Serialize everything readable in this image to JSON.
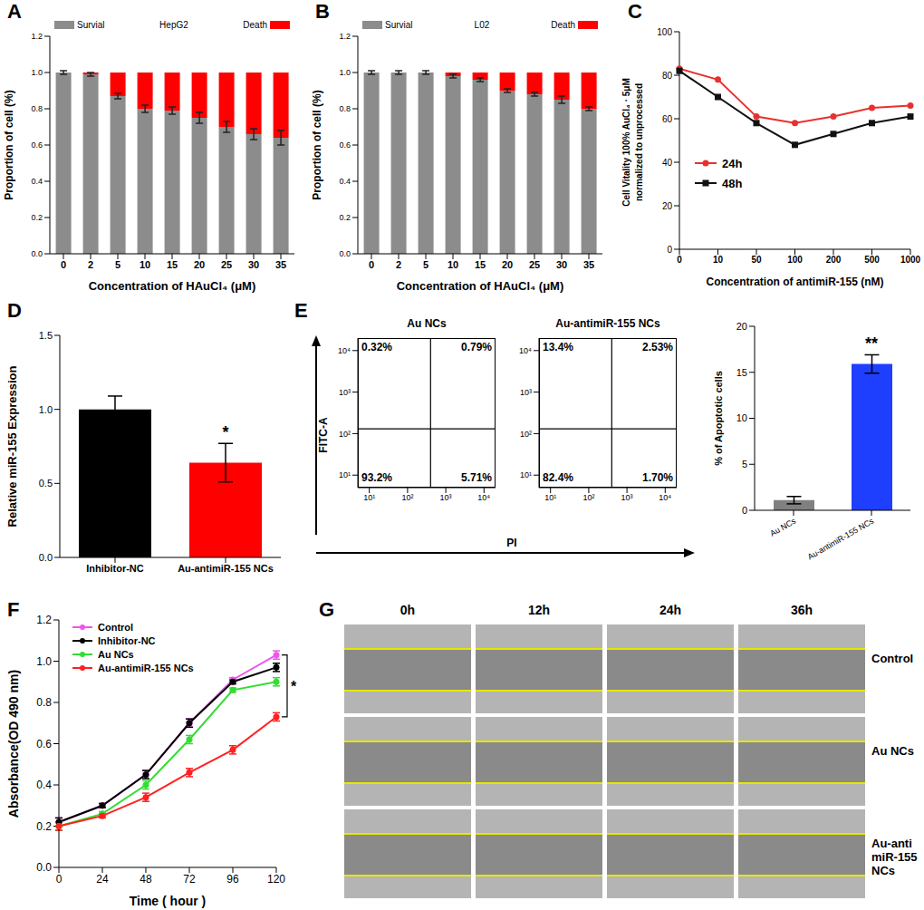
{
  "chart_data": [
    {
      "panel": "A",
      "type": "bar",
      "stacked": true,
      "title": "HepG2",
      "legend": "top",
      "categories": [
        0,
        2,
        5,
        10,
        15,
        20,
        25,
        30,
        35
      ],
      "x_label": "Concentration of  HAuCl₄ (μM)",
      "y_label": "Proportion of cell (%)",
      "ylim": [
        0,
        1.2
      ],
      "yticks": [
        {
          "value": 0,
          "label": "0.0"
        },
        0.2,
        0.4,
        0.6,
        0.8,
        {
          "value": 1,
          "label": "1.0"
        },
        1.2
      ],
      "series": [
        {
          "name": "Survial",
          "color": "#8c8c8c",
          "values": [
            1.0,
            0.99,
            0.87,
            0.8,
            0.79,
            0.75,
            0.7,
            0.66,
            0.64
          ],
          "error": [
            0.01,
            0.01,
            0.015,
            0.02,
            0.02,
            0.03,
            0.03,
            0.03,
            0.04
          ]
        },
        {
          "name": "Death",
          "color": "#ff0000",
          "values": [
            0,
            0.01,
            0.13,
            0.2,
            0.21,
            0.25,
            0.3,
            0.34,
            0.36
          ]
        }
      ]
    },
    {
      "panel": "B",
      "type": "bar",
      "stacked": true,
      "title": "L02",
      "legend": "top",
      "categories": [
        0,
        2,
        5,
        10,
        15,
        20,
        25,
        30,
        35
      ],
      "x_label": "Concentration of  HAuCl₄ (μM)",
      "y_label": "Proportion of cell (%)",
      "ylim": [
        0,
        1.2
      ],
      "yticks": [
        {
          "value": 0,
          "label": "0.0"
        },
        0.2,
        0.4,
        0.6,
        0.8,
        {
          "value": 1,
          "label": "1.0"
        },
        1.2
      ],
      "series": [
        {
          "name": "Survial",
          "color": "#8c8c8c",
          "values": [
            1.0,
            1.0,
            1.0,
            0.98,
            0.96,
            0.9,
            0.88,
            0.85,
            0.8
          ],
          "error": [
            0.01,
            0.01,
            0.01,
            0.01,
            0.01,
            0.01,
            0.01,
            0.02,
            0.01
          ]
        },
        {
          "name": "Death",
          "color": "#ff0000",
          "values": [
            0,
            0,
            0,
            0.02,
            0.04,
            0.1,
            0.12,
            0.15,
            0.2
          ]
        }
      ]
    },
    {
      "panel": "C",
      "type": "line",
      "legend": "left",
      "categories": [
        0,
        10,
        50,
        100,
        200,
        500,
        1000
      ],
      "x_label": "Concentration of  antimiR-155 (nM)",
      "y_label_lines": [
        "Cell Vitality 100% AuCl₄ · 5μM",
        "normalized to unprocessed"
      ],
      "ylim": [
        0,
        100
      ],
      "yticks": [
        0,
        20,
        40,
        60,
        80,
        100
      ],
      "series": [
        {
          "name": "24h",
          "color": "#e8312f",
          "marker": "circle",
          "values": [
            83,
            78,
            61,
            58,
            61,
            65,
            66
          ]
        },
        {
          "name": "48h",
          "color": "#111111",
          "marker": "square",
          "values": [
            82,
            70,
            58,
            48,
            53,
            58,
            61
          ]
        }
      ]
    },
    {
      "panel": "D",
      "type": "bar",
      "categories": [
        "Inhibitor-NC",
        "Au-antimiR-155 NCs"
      ],
      "values": [
        1.0,
        0.64
      ],
      "error": [
        0.09,
        0.13
      ],
      "colors": [
        "#000000",
        "#ff0000"
      ],
      "y_label": "Relative  miR-155 Expression",
      "ylim": [
        0,
        1.5
      ],
      "yticks": [
        {
          "value": 0,
          "label": "0.0"
        },
        0.5,
        {
          "value": 1,
          "label": "1.0"
        },
        1.5
      ],
      "annotations": [
        {
          "text": "*",
          "category": "Au-antimiR-155 NCs"
        }
      ]
    },
    {
      "panel": "E",
      "type": "quadrant",
      "title": "Au NCs",
      "x_label": "PI",
      "y_label": "FITC-A",
      "log": true,
      "xlim": [
        5,
        20000
      ],
      "ylim": [
        5,
        20000
      ],
      "xticks": [
        {
          "value": 10,
          "label": "10¹"
        },
        {
          "value": 100,
          "label": "10²"
        },
        {
          "value": 1000,
          "label": "10³"
        },
        {
          "value": 10000,
          "label": "10⁴"
        }
      ],
      "yticks": [
        {
          "value": 10,
          "label": "10¹"
        },
        {
          "value": 100,
          "label": "10²"
        },
        {
          "value": 1000,
          "label": "10³"
        },
        {
          "value": 10000,
          "label": "10⁴"
        }
      ],
      "gates": {
        "x": 400,
        "y": 130
      },
      "quadrant_values": [
        0.32,
        0.79,
        93.2,
        5.71
      ],
      "quadrant_labels": [
        "0.32%",
        "0.79%",
        "93.2%",
        "5.71%"
      ]
    },
    {
      "type": "quadrant",
      "title": "Au-antimiR-155 NCs",
      "log": true,
      "xlim": [
        5,
        20000
      ],
      "ylim": [
        5,
        20000
      ],
      "xticks": [
        {
          "value": 10,
          "label": "10¹"
        },
        {
          "value": 100,
          "label": "10²"
        },
        {
          "value": 1000,
          "label": "10³"
        },
        {
          "value": 10000,
          "label": "10⁴"
        }
      ],
      "yticks": [
        {
          "value": 10,
          "label": "10¹"
        },
        {
          "value": 100,
          "label": "10²"
        },
        {
          "value": 1000,
          "label": "10³"
        },
        {
          "value": 10000,
          "label": "10⁴"
        }
      ],
      "gates": {
        "x": 400,
        "y": 130
      },
      "quadrant_values": [
        13.4,
        2.53,
        82.4,
        1.7
      ],
      "quadrant_labels": [
        "13.4%",
        "2.53%",
        "82.4%",
        "1.70%"
      ]
    },
    {
      "type": "bar",
      "categories": [
        "Au NCs",
        "Au-antimiR-155 NCs"
      ],
      "values": [
        1.1,
        15.9
      ],
      "error": [
        0.4,
        1.0
      ],
      "colors": [
        "#808080",
        "#1f3fff"
      ],
      "y_label": "% of Apoptotic cells",
      "ylim": [
        0,
        20
      ],
      "yticks": [
        0,
        5,
        10,
        15,
        20
      ],
      "annotations": [
        {
          "text": "**",
          "category": "Au-antimiR-155 NCs"
        }
      ]
    },
    {
      "panel": "F",
      "type": "line",
      "legend": "upper left",
      "categories": [
        0,
        24,
        48,
        72,
        96,
        120
      ],
      "x_label": "Time ( hour )",
      "y_label": "Absorbance(OD 490 nm)",
      "ylim": [
        0,
        1.2
      ],
      "yticks": [
        {
          "value": 0,
          "label": "0.0"
        },
        0.2,
        0.4,
        0.6,
        0.8,
        {
          "value": 1,
          "label": "1.0"
        },
        1.2
      ],
      "series": [
        {
          "name": "Control",
          "color": "#ee55ee",
          "marker": "circle",
          "values": [
            0.22,
            0.3,
            0.45,
            0.7,
            0.91,
            1.03
          ],
          "error": [
            0.02,
            0.01,
            0.02,
            0.02,
            0.01,
            0.02
          ]
        },
        {
          "name": "Inhibitor-NC",
          "color": "#000000",
          "marker": "circle",
          "values": [
            0.22,
            0.3,
            0.45,
            0.7,
            0.9,
            0.97
          ],
          "error": [
            0.02,
            0.01,
            0.02,
            0.02,
            0.01,
            0.02
          ]
        },
        {
          "name": "Au NCs",
          "color": "#33dd33",
          "marker": "circle",
          "values": [
            0.2,
            0.26,
            0.4,
            0.62,
            0.86,
            0.9
          ],
          "error": [
            0.02,
            0.01,
            0.02,
            0.02,
            0.01,
            0.02
          ]
        },
        {
          "name": "Au-antimiR-155 NCs",
          "color": "#ff2020",
          "marker": "circle",
          "values": [
            0.2,
            0.25,
            0.34,
            0.46,
            0.57,
            0.73
          ],
          "error": [
            0.02,
            0.01,
            0.02,
            0.02,
            0.02,
            0.02
          ]
        }
      ],
      "annotations": [
        {
          "text": "*",
          "from": "Control",
          "to": "Au-antimiR-155 NCs"
        }
      ]
    },
    {
      "panel": "G",
      "type": "image_grid",
      "columns": [
        "0h",
        "12h",
        "24h",
        "36h"
      ],
      "rows": [
        "Control",
        "Au NCs",
        "Au-anti miR-155 NCs"
      ]
    }
  ]
}
